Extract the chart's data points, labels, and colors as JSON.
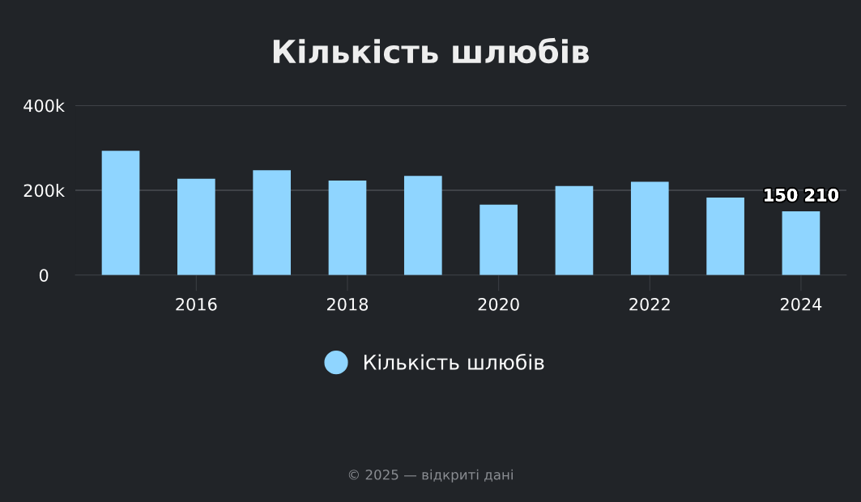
{
  "chart_data": {
    "type": "bar",
    "title": "Кількість шлюбів",
    "x": [
      2015,
      2016,
      2017,
      2018,
      2019,
      2020,
      2021,
      2022,
      2023,
      2024
    ],
    "series": [
      {
        "name": "Кількість шлюбів",
        "color": "#8fd5ff",
        "values": [
          293000,
          227000,
          247000,
          223000,
          234000,
          166000,
          210000,
          220000,
          183000,
          150210
        ],
        "value_labels": [
          null,
          null,
          null,
          null,
          null,
          null,
          null,
          null,
          null,
          "150 210"
        ]
      }
    ],
    "xlim": [
      2014.4,
      2024.6
    ],
    "xticks": [
      2016,
      2018,
      2020,
      2022,
      2024
    ],
    "ylim": [
      0,
      400000
    ],
    "yticks": [
      {
        "value": 0,
        "label": "0"
      },
      {
        "value": 200000,
        "label": "200k"
      },
      {
        "value": 400000,
        "label": "400k"
      }
    ],
    "grid": "y",
    "legend": "bottom",
    "marker": "circle",
    "annotations": [
      "© 2025 — відкриті дані"
    ]
  }
}
